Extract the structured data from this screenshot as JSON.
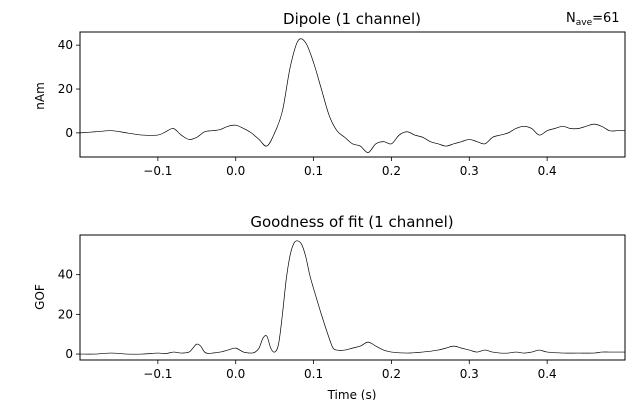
{
  "figure": {
    "nave_label": "N",
    "nave_subscript": "ave",
    "nave_value": "=61"
  },
  "chart_data": [
    {
      "type": "line",
      "title": "Dipole (1 channel)",
      "ylabel": "nAm",
      "xlabel": "",
      "xlim": [
        -0.2,
        0.5
      ],
      "ylim": [
        -11,
        46
      ],
      "xticks": [
        -0.1,
        0.0,
        0.1,
        0.2,
        0.3,
        0.4
      ],
      "xtick_labels": [
        "−0.1",
        "0.0",
        "0.1",
        "0.2",
        "0.3",
        "0.4"
      ],
      "yticks": [
        0,
        20,
        40
      ],
      "ytick_labels": [
        "0",
        "20",
        "40"
      ],
      "grid": false,
      "line_color": "#000000",
      "series": [
        {
          "x": [
            -0.2,
            -0.18,
            -0.16,
            -0.14,
            -0.12,
            -0.1,
            -0.09,
            -0.08,
            -0.07,
            -0.06,
            -0.05,
            -0.04,
            -0.03,
            -0.02,
            -0.01,
            0.0,
            0.01,
            0.02,
            0.03,
            0.04,
            0.05,
            0.06,
            0.07,
            0.08,
            0.09,
            0.1,
            0.11,
            0.12,
            0.13,
            0.14,
            0.15,
            0.16,
            0.17,
            0.18,
            0.19,
            0.2,
            0.21,
            0.22,
            0.23,
            0.24,
            0.25,
            0.26,
            0.27,
            0.28,
            0.29,
            0.3,
            0.31,
            0.32,
            0.33,
            0.34,
            0.35,
            0.36,
            0.37,
            0.38,
            0.39,
            0.4,
            0.41,
            0.42,
            0.43,
            0.44,
            0.45,
            0.46,
            0.47,
            0.48,
            0.49,
            0.5
          ],
          "values": [
            0,
            0.5,
            1,
            0,
            -1,
            -1,
            0.5,
            2,
            -1,
            -3,
            -2,
            0.5,
            1,
            1.5,
            3,
            3.5,
            2,
            0,
            -3,
            -6,
            0,
            10,
            30,
            42,
            41,
            32,
            20,
            8,
            1,
            -2,
            -5,
            -6,
            -9,
            -5,
            -4,
            -5,
            -1,
            0.5,
            -1,
            -2,
            -4,
            -5,
            -6,
            -5,
            -4,
            -3,
            -4,
            -5,
            -2,
            -1,
            0,
            2,
            3,
            2,
            -1,
            1,
            2,
            3,
            2,
            2,
            3,
            4,
            3,
            1,
            1,
            1
          ]
        }
      ]
    },
    {
      "type": "line",
      "title": "Goodness of fit (1 channel)",
      "ylabel": "GOF",
      "xlabel": "Time (s)",
      "xlim": [
        -0.2,
        0.5
      ],
      "ylim": [
        -3,
        60
      ],
      "xticks": [
        -0.1,
        0.0,
        0.1,
        0.2,
        0.3,
        0.4
      ],
      "xtick_labels": [
        "−0.1",
        "0.0",
        "0.1",
        "0.2",
        "0.3",
        "0.4"
      ],
      "yticks": [
        0,
        20,
        40
      ],
      "ytick_labels": [
        "0",
        "20",
        "40"
      ],
      "grid": false,
      "line_color": "#000000",
      "series": [
        {
          "x": [
            -0.2,
            -0.18,
            -0.16,
            -0.14,
            -0.12,
            -0.1,
            -0.09,
            -0.08,
            -0.07,
            -0.06,
            -0.055,
            -0.05,
            -0.045,
            -0.04,
            -0.035,
            -0.03,
            -0.02,
            -0.01,
            0.0,
            0.01,
            0.02,
            0.025,
            0.03,
            0.035,
            0.04,
            0.045,
            0.05,
            0.055,
            0.06,
            0.065,
            0.07,
            0.075,
            0.08,
            0.085,
            0.09,
            0.095,
            0.1,
            0.11,
            0.12,
            0.125,
            0.13,
            0.14,
            0.15,
            0.16,
            0.17,
            0.18,
            0.19,
            0.2,
            0.22,
            0.24,
            0.26,
            0.27,
            0.28,
            0.29,
            0.3,
            0.31,
            0.32,
            0.33,
            0.34,
            0.35,
            0.36,
            0.37,
            0.38,
            0.39,
            0.4,
            0.42,
            0.44,
            0.46,
            0.47,
            0.48,
            0.49,
            0.5
          ],
          "values": [
            0,
            0,
            0.5,
            0,
            0,
            0.5,
            0.2,
            1,
            0.5,
            1,
            3,
            5,
            4,
            1,
            0.3,
            0.5,
            1,
            2,
            3,
            1,
            0.5,
            1,
            3,
            8,
            9,
            3,
            1,
            5,
            20,
            38,
            50,
            56,
            57,
            55,
            49,
            40,
            33,
            20,
            8,
            3,
            2,
            2,
            3,
            4,
            6,
            4,
            2,
            1,
            0.5,
            1,
            2,
            3,
            4,
            3,
            2,
            1,
            2,
            1,
            0.5,
            0.5,
            1,
            0.5,
            1,
            2,
            1,
            0.5,
            0.5,
            0.5,
            1,
            1,
            1,
            1
          ]
        }
      ]
    }
  ]
}
